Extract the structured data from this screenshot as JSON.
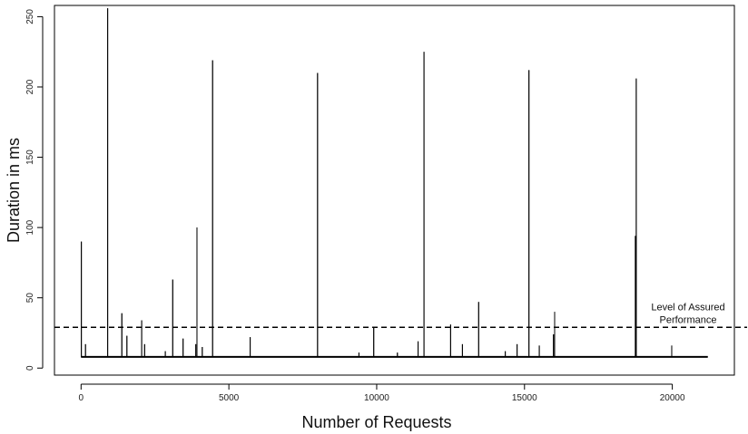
{
  "chart_data": {
    "type": "line",
    "title": "",
    "xlabel": "Number of Requests",
    "ylabel": "Duration in ms",
    "xlim": [
      -900,
      22100
    ],
    "ylim": [
      -5,
      258
    ],
    "x_ticks": [
      0,
      5000,
      10000,
      15000,
      20000
    ],
    "x_tick_labels": [
      "0",
      "5000",
      "10000",
      "15000",
      "20000"
    ],
    "y_ticks": [
      0,
      50,
      100,
      150,
      200,
      250
    ],
    "y_tick_labels": [
      "0",
      "50",
      "100",
      "150",
      "200",
      "250"
    ],
    "grid": false,
    "baseline": {
      "x_start": 0,
      "x_end": 21200,
      "y": 8
    },
    "spikes": [
      {
        "x": 10,
        "y": 90
      },
      {
        "x": 150,
        "y": 17
      },
      {
        "x": 900,
        "y": 256
      },
      {
        "x": 1380,
        "y": 39
      },
      {
        "x": 1550,
        "y": 23
      },
      {
        "x": 2050,
        "y": 34
      },
      {
        "x": 2150,
        "y": 17
      },
      {
        "x": 2850,
        "y": 12
      },
      {
        "x": 3100,
        "y": 63
      },
      {
        "x": 3450,
        "y": 21
      },
      {
        "x": 3880,
        "y": 17
      },
      {
        "x": 3920,
        "y": 100
      },
      {
        "x": 4100,
        "y": 15
      },
      {
        "x": 4450,
        "y": 219
      },
      {
        "x": 5720,
        "y": 22
      },
      {
        "x": 8000,
        "y": 210
      },
      {
        "x": 9400,
        "y": 11
      },
      {
        "x": 9900,
        "y": 29
      },
      {
        "x": 10700,
        "y": 11
      },
      {
        "x": 11400,
        "y": 19
      },
      {
        "x": 11600,
        "y": 225
      },
      {
        "x": 12500,
        "y": 31
      },
      {
        "x": 12900,
        "y": 17
      },
      {
        "x": 13450,
        "y": 47
      },
      {
        "x": 14350,
        "y": 12
      },
      {
        "x": 14750,
        "y": 17
      },
      {
        "x": 15150,
        "y": 212
      },
      {
        "x": 15500,
        "y": 16
      },
      {
        "x": 15980,
        "y": 24
      },
      {
        "x": 16020,
        "y": 40
      },
      {
        "x": 18750,
        "y": 94
      },
      {
        "x": 18780,
        "y": 206
      },
      {
        "x": 19980,
        "y": 16
      }
    ],
    "reference_line": {
      "y": 29,
      "style": "dashed",
      "label_lines": [
        "Level of Assured",
        "Performance"
      ]
    },
    "series_color": "#000000"
  }
}
